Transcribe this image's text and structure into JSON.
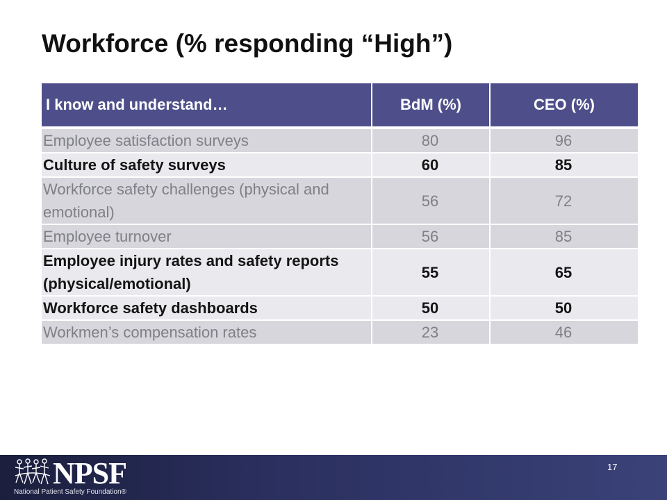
{
  "slide": {
    "title": "Workforce (% responding “High”)"
  },
  "table": {
    "headers": [
      "I know and understand…",
      "BdM (%)",
      "CEO (%)"
    ],
    "rows": [
      {
        "item": "Employee satisfaction surveys",
        "bdm": "80",
        "ceo": "96"
      },
      {
        "item": "Culture of safety surveys",
        "bdm": "60",
        "ceo": "85"
      },
      {
        "item": "Workforce safety challenges (physical and emotional)",
        "bdm": "56",
        "ceo": "72"
      },
      {
        "item": "Employee turnover",
        "bdm": "56",
        "ceo": "85"
      },
      {
        "item": "Employee injury rates and safety reports (physical/emotional)",
        "bdm": "55",
        "ceo": "65"
      },
      {
        "item": "Workforce safety dashboards",
        "bdm": "50",
        "ceo": "50"
      },
      {
        "item": "Workmen’s compensation rates",
        "bdm": "23",
        "ceo": "46"
      }
    ]
  },
  "footer": {
    "logo_text": "NPSF",
    "logo_subtitle": "National Patient Safety Foundation®",
    "page_number": "17"
  },
  "colors": {
    "header_bg": "#4e4f8a",
    "muted_row_bg": "#d6d6dc",
    "muted_row_text": "#7f7f86",
    "strong_row_bg": "#eaeaee",
    "footer_band": "#2a2f5e"
  }
}
